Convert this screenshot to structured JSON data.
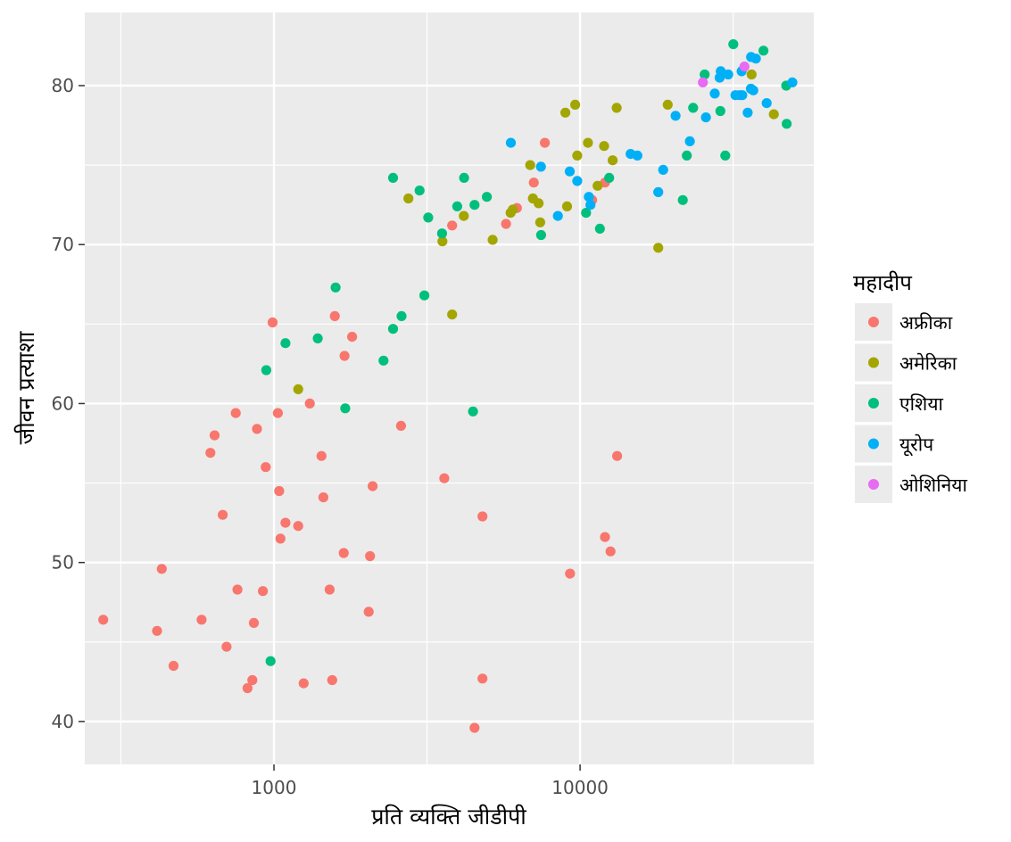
{
  "chart_data": {
    "type": "scatter",
    "xlabel": "प्रति व्यक्ति जीडीपी",
    "ylabel": "जीवन प्रत्याशा",
    "x_scale": "log10",
    "xlim": [
      241,
      58000
    ],
    "ylim": [
      37.3,
      84.6
    ],
    "x_ticks": [
      1000,
      10000
    ],
    "x_tick_labels": [
      "1000",
      "10000"
    ],
    "y_ticks": [
      40,
      50,
      60,
      70,
      80
    ],
    "y_tick_labels": [
      "40",
      "50",
      "60",
      "70",
      "80"
    ],
    "background": "#ebebeb",
    "grid": true,
    "legend": {
      "title": "महादीप",
      "position": "right",
      "entries": [
        {
          "label": "अफ्रीका",
          "color": "#F8766D"
        },
        {
          "label": "अमेरिका",
          "color": "#A3A500"
        },
        {
          "label": "एशिया",
          "color": "#00BF7D"
        },
        {
          "label": "यूरोप",
          "color": "#00B0F6"
        },
        {
          "label": "ओशिनिया",
          "color": "#E76BF3"
        }
      ]
    },
    "series": [
      {
        "name": "अफ्रीका",
        "color": "#F8766D",
        "points": [
          [
            277,
            46.4
          ],
          [
            415,
            45.7
          ],
          [
            430,
            49.6
          ],
          [
            470,
            43.5
          ],
          [
            580,
            46.4
          ],
          [
            620,
            56.9
          ],
          [
            640,
            58.0
          ],
          [
            680,
            53.0
          ],
          [
            700,
            44.7
          ],
          [
            750,
            59.4
          ],
          [
            760,
            48.3
          ],
          [
            820,
            42.1
          ],
          [
            850,
            42.6
          ],
          [
            860,
            46.2
          ],
          [
            880,
            58.4
          ],
          [
            920,
            48.2
          ],
          [
            940,
            56.0
          ],
          [
            990,
            65.1
          ],
          [
            1030,
            59.4
          ],
          [
            1040,
            54.5
          ],
          [
            1050,
            51.5
          ],
          [
            1090,
            52.5
          ],
          [
            1200,
            52.3
          ],
          [
            1250,
            42.4
          ],
          [
            1310,
            60.0
          ],
          [
            1430,
            56.7
          ],
          [
            1450,
            54.1
          ],
          [
            1520,
            48.3
          ],
          [
            1550,
            42.6
          ],
          [
            1580,
            65.5
          ],
          [
            1690,
            50.6
          ],
          [
            1700,
            63.0
          ],
          [
            1800,
            64.2
          ],
          [
            2040,
            46.9
          ],
          [
            2060,
            50.4
          ],
          [
            2100,
            54.8
          ],
          [
            2600,
            58.6
          ],
          [
            3600,
            55.3
          ],
          [
            3820,
            71.2
          ],
          [
            4520,
            39.6
          ],
          [
            4800,
            52.9
          ],
          [
            4800,
            42.7
          ],
          [
            5730,
            71.3
          ],
          [
            6220,
            72.3
          ],
          [
            7060,
            73.9
          ],
          [
            7670,
            76.4
          ],
          [
            9270,
            49.3
          ],
          [
            10950,
            72.8
          ],
          [
            12060,
            51.6
          ],
          [
            12060,
            73.9
          ],
          [
            12570,
            50.7
          ],
          [
            13210,
            56.7
          ]
        ]
      },
      {
        "name": "अमेरिका",
        "color": "#A3A500",
        "points": [
          [
            1200,
            60.9
          ],
          [
            2750,
            72.9
          ],
          [
            3550,
            70.2
          ],
          [
            3820,
            65.6
          ],
          [
            4170,
            71.8
          ],
          [
            5180,
            70.3
          ],
          [
            5930,
            72.0
          ],
          [
            6030,
            72.2
          ],
          [
            6870,
            75.0
          ],
          [
            7010,
            72.9
          ],
          [
            7320,
            72.6
          ],
          [
            7410,
            71.4
          ],
          [
            8950,
            78.3
          ],
          [
            9070,
            72.4
          ],
          [
            9640,
            78.8
          ],
          [
            9790,
            75.6
          ],
          [
            10610,
            76.4
          ],
          [
            11410,
            73.7
          ],
          [
            11980,
            76.2
          ],
          [
            12780,
            75.3
          ],
          [
            13170,
            78.6
          ],
          [
            18010,
            69.8
          ],
          [
            19330,
            78.8
          ],
          [
            36320,
            80.7
          ],
          [
            42950,
            78.2
          ]
        ]
      },
      {
        "name": "एशिया",
        "color": "#00BF7D",
        "points": [
          [
            975,
            43.8
          ],
          [
            944,
            62.1
          ],
          [
            1090,
            63.8
          ],
          [
            1390,
            64.1
          ],
          [
            1590,
            67.3
          ],
          [
            1710,
            59.7
          ],
          [
            2280,
            62.7
          ],
          [
            2450,
            64.7
          ],
          [
            2450,
            74.2
          ],
          [
            2610,
            65.5
          ],
          [
            2990,
            73.4
          ],
          [
            3100,
            66.8
          ],
          [
            3190,
            71.7
          ],
          [
            3540,
            70.7
          ],
          [
            3970,
            72.4
          ],
          [
            4180,
            74.2
          ],
          [
            4470,
            59.5
          ],
          [
            4520,
            72.5
          ],
          [
            4960,
            73.0
          ],
          [
            7460,
            70.6
          ],
          [
            10460,
            72.0
          ],
          [
            11610,
            71.0
          ],
          [
            12450,
            74.2
          ],
          [
            21650,
            72.8
          ],
          [
            22320,
            75.6
          ],
          [
            23400,
            78.6
          ],
          [
            25520,
            80.7
          ],
          [
            28720,
            78.4
          ],
          [
            29800,
            75.6
          ],
          [
            31660,
            82.6
          ],
          [
            39720,
            82.2
          ],
          [
            47140,
            80.0
          ],
          [
            47310,
            77.6
          ]
        ]
      },
      {
        "name": "यूरोप",
        "color": "#00B0F6",
        "points": [
          [
            5940,
            76.4
          ],
          [
            7450,
            74.9
          ],
          [
            8460,
            71.8
          ],
          [
            9250,
            74.6
          ],
          [
            9790,
            74.0
          ],
          [
            10680,
            73.0
          ],
          [
            10810,
            72.5
          ],
          [
            14620,
            75.7
          ],
          [
            15390,
            75.6
          ],
          [
            18010,
            73.3
          ],
          [
            18680,
            74.7
          ],
          [
            20510,
            78.1
          ],
          [
            22830,
            76.5
          ],
          [
            25770,
            78.0
          ],
          [
            27540,
            79.5
          ],
          [
            28570,
            80.5
          ],
          [
            28800,
            80.9
          ],
          [
            30470,
            80.7
          ],
          [
            32170,
            79.4
          ],
          [
            33210,
            79.4
          ],
          [
            33690,
            80.9
          ],
          [
            33860,
            79.4
          ],
          [
            35280,
            78.3
          ],
          [
            36130,
            79.8
          ],
          [
            36180,
            81.8
          ],
          [
            36800,
            79.7
          ],
          [
            37510,
            81.7
          ],
          [
            40680,
            78.9
          ],
          [
            49360,
            80.2
          ]
        ]
      },
      {
        "name": "ओशिनिया",
        "color": "#E76BF3",
        "points": [
          [
            25190,
            80.2
          ],
          [
            34440,
            81.2
          ]
        ]
      }
    ]
  }
}
